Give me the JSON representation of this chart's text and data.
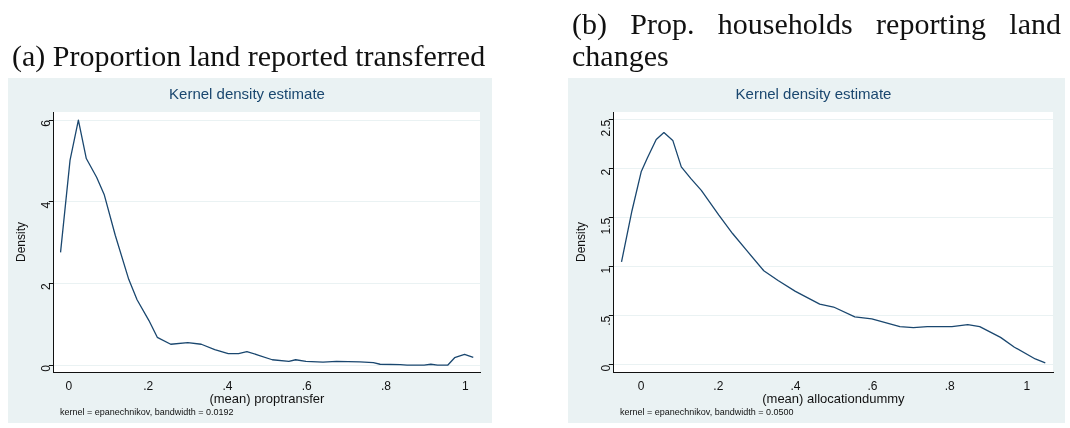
{
  "chart_data": [
    {
      "type": "line",
      "title": "(a) Proportion land reported transferred",
      "subtitle": "Kernel density estimate",
      "xlabel": "(mean) proptransfer",
      "ylabel": "Density",
      "annotations": [
        "kernel = epanechnikov, bandwidth = 0.0192"
      ],
      "x": [
        -0.021,
        0.003,
        0.024,
        0.044,
        0.07,
        0.089,
        0.117,
        0.151,
        0.172,
        0.202,
        0.223,
        0.257,
        0.3,
        0.334,
        0.368,
        0.402,
        0.428,
        0.449,
        0.479,
        0.513,
        0.555,
        0.572,
        0.598,
        0.641,
        0.675,
        0.734,
        0.768,
        0.785,
        0.836,
        0.853,
        0.896,
        0.913,
        0.93,
        0.956,
        0.973,
        0.998,
        1.02
      ],
      "series": [
        {
          "color": "#1a476f",
          "values": [
            2.76,
            5.02,
            6.0,
            5.06,
            4.6,
            4.18,
            3.18,
            2.1,
            1.6,
            1.09,
            0.68,
            0.51,
            0.55,
            0.51,
            0.38,
            0.28,
            0.28,
            0.33,
            0.24,
            0.13,
            0.09,
            0.13,
            0.09,
            0.07,
            0.09,
            0.08,
            0.06,
            0.02,
            0.01,
            0,
            0,
            0.02,
            0,
            0,
            0.18,
            0.26,
            0.19
          ]
        }
      ],
      "xlim": [
        -0.038,
        1.037
      ],
      "ylim": [
        -0.17,
        6.2
      ],
      "xticks": [
        {
          "value": 0,
          "label": "0"
        },
        {
          "value": 0.2,
          "label": ".2"
        },
        {
          "value": 0.4,
          "label": ".4"
        },
        {
          "value": 0.6,
          "label": ".6"
        },
        {
          "value": 0.8,
          "label": ".8"
        },
        {
          "value": 1,
          "label": "1"
        }
      ],
      "yticks": [
        0,
        2,
        4,
        6
      ],
      "grid": "y",
      "legend": false,
      "marker": "none",
      "line_style": "solid"
    },
    {
      "type": "line",
      "title": "(b) Prop. households reporting land changes",
      "subtitle": "Kernel density estimate",
      "xlabel": "(mean) allocationdummy",
      "ylabel": "Density",
      "annotations": [
        "kernel = epanechnikov, bandwidth = 0.0500"
      ],
      "x": [
        -0.051,
        -0.024,
        0,
        0.016,
        0.039,
        0.059,
        0.082,
        0.104,
        0.129,
        0.156,
        0.201,
        0.237,
        0.273,
        0.318,
        0.355,
        0.4,
        0.463,
        0.499,
        0.554,
        0.598,
        0.671,
        0.706,
        0.742,
        0.806,
        0.847,
        0.878,
        0.932,
        0.968,
        1.022,
        1.048
      ],
      "series": [
        {
          "color": "#1a476f",
          "values": [
            1.05,
            1.57,
            1.97,
            2.11,
            2.3,
            2.37,
            2.29,
            2.02,
            1.9,
            1.78,
            1.53,
            1.34,
            1.17,
            0.96,
            0.86,
            0.75,
            0.62,
            0.59,
            0.49,
            0.47,
            0.39,
            0.38,
            0.39,
            0.39,
            0.41,
            0.39,
            0.28,
            0.18,
            0.06,
            0.02
          ]
        }
      ],
      "xlim": [
        -0.071,
        1.068
      ],
      "ylim": [
        -0.073,
        2.58
      ],
      "xticks": [
        {
          "value": 0,
          "label": "0"
        },
        {
          "value": 0.2,
          "label": ".2"
        },
        {
          "value": 0.4,
          "label": ".4"
        },
        {
          "value": 0.6,
          "label": ".6"
        },
        {
          "value": 0.8,
          "label": ".8"
        },
        {
          "value": 1,
          "label": "1"
        }
      ],
      "yticks": [
        0,
        {
          "value": 0.5,
          "label": ".5"
        },
        1,
        1.5,
        2,
        2.5
      ],
      "grid": "y",
      "legend": false,
      "marker": "none",
      "line_style": "solid"
    }
  ]
}
